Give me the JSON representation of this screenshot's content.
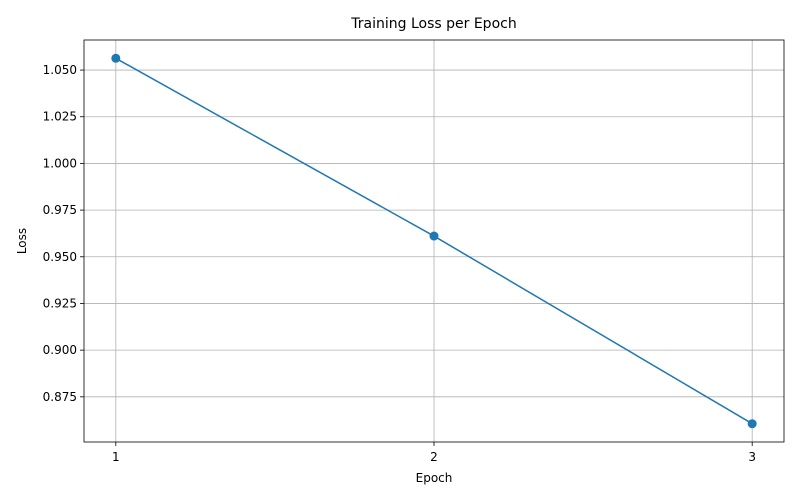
{
  "chart_data": {
    "type": "line",
    "title": "Training Loss per Epoch",
    "xlabel": "Epoch",
    "ylabel": "Loss",
    "x": [
      1,
      2,
      3
    ],
    "series": [
      {
        "values": [
          1.0563,
          0.9611,
          0.8606
        ]
      }
    ],
    "xlim": [
      0.9,
      3.1
    ],
    "ylim": [
      0.8508,
      1.0661
    ],
    "x_ticks": [
      "1",
      "2",
      "3"
    ],
    "y_ticks": [
      "0.875",
      "0.900",
      "0.925",
      "0.950",
      "0.975",
      "1.000",
      "1.025",
      "1.050"
    ],
    "grid": true,
    "legend": "none",
    "line_color": "#1f77b4",
    "marker": "circle"
  }
}
